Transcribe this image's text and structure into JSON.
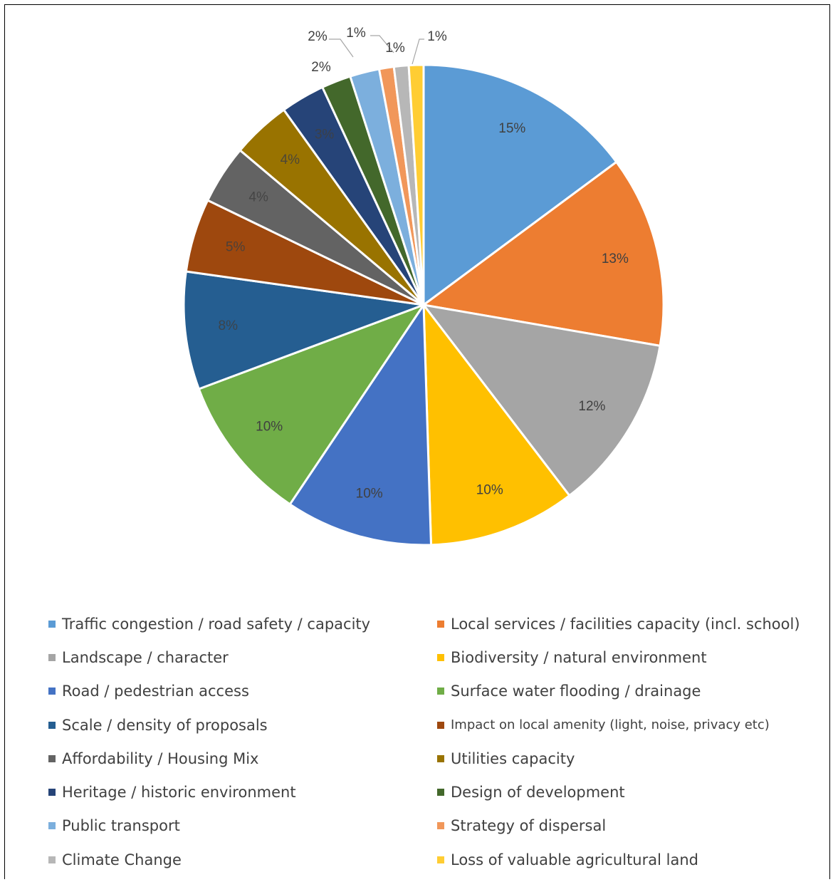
{
  "chart_data": {
    "type": "pie",
    "title": "",
    "slices": [
      {
        "name": "Traffic congestion / road safety / capacity",
        "value": 15,
        "label": "15%",
        "color": "#5b9bd5"
      },
      {
        "name": "Local services / facilities capacity (incl. school)",
        "value": 13,
        "label": "13%",
        "color": "#ed7d31"
      },
      {
        "name": "Landscape / character",
        "value": 12,
        "label": "12%",
        "color": "#a5a5a5"
      },
      {
        "name": "Biodiversity / natural environment",
        "value": 10,
        "label": "10%",
        "color": "#ffc000"
      },
      {
        "name": "Road / pedestrian access",
        "value": 10,
        "label": "10%",
        "color": "#4472c4"
      },
      {
        "name": "Surface water flooding / drainage",
        "value": 10,
        "label": "10%",
        "color": "#70ad47"
      },
      {
        "name": "Scale / density of proposals",
        "value": 8,
        "label": "8%",
        "color": "#255e91"
      },
      {
        "name": "Impact on local amenity (light, noise, privacy etc)",
        "value": 5,
        "label": "5%",
        "color": "#9e480e"
      },
      {
        "name": "Affordability / Housing Mix",
        "value": 4,
        "label": "4%",
        "color": "#636363"
      },
      {
        "name": "Utilities capacity",
        "value": 4,
        "label": "4%",
        "color": "#997300"
      },
      {
        "name": "Heritage / historic environment",
        "value": 3,
        "label": "3%",
        "color": "#264478"
      },
      {
        "name": "Design of development",
        "value": 2,
        "label": "2%",
        "color": "#43682b"
      },
      {
        "name": "Public transport",
        "value": 2,
        "label": "2%",
        "color": "#7cafdd"
      },
      {
        "name": "Strategy of dispersal",
        "value": 1,
        "label": "1%",
        "color": "#f1975a"
      },
      {
        "name": "Climate Change",
        "value": 1,
        "label": "1%",
        "color": "#b7b7b7"
      },
      {
        "name": "Loss of valuable agricultural land",
        "value": 1,
        "label": "1%",
        "color": "#ffcd33"
      }
    ],
    "legend_position": "bottom"
  }
}
